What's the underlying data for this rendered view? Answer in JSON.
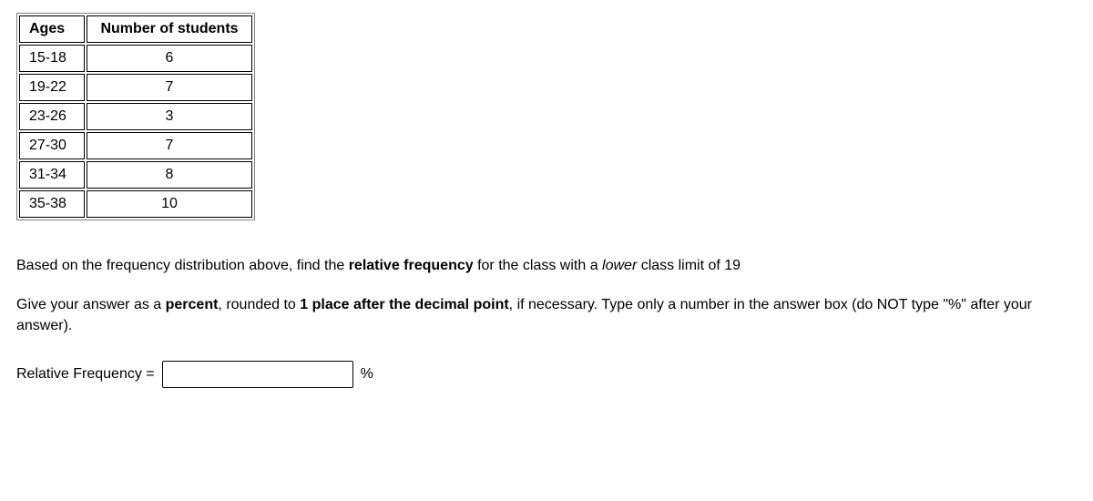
{
  "table": {
    "columns": [
      "Ages",
      "Number of students"
    ],
    "rows": [
      [
        "15-18",
        "6"
      ],
      [
        "19-22",
        "7"
      ],
      [
        "23-26",
        "3"
      ],
      [
        "27-30",
        "7"
      ],
      [
        "31-34",
        "8"
      ],
      [
        "35-38",
        "10"
      ]
    ],
    "col_align": [
      "left",
      "center"
    ],
    "border_color": "#000000",
    "outer_border_color": "#808080",
    "cell_padding": "5px 10px",
    "header_fontweight": "bold"
  },
  "question": {
    "part1_a": "Based on the frequency distribution above, find the ",
    "part1_bold": "relative frequency",
    "part1_b": " for the class with a ",
    "part1_italic": "lower",
    "part1_c": " class limit of 19",
    "part2_a": "Give your answer as a ",
    "part2_bold1": "percent",
    "part2_b": ", rounded to ",
    "part2_bold2": "1 place after the decimal point",
    "part2_c": ", if necessary. Type only a number in the answer box (do NOT type \"%\" after your answer)."
  },
  "answer": {
    "label": "Relative Frequency =",
    "value": "",
    "unit": "%"
  },
  "colors": {
    "text": "#000000",
    "background": "#ffffff",
    "table_border": "#000000",
    "table_outer": "#808080"
  }
}
